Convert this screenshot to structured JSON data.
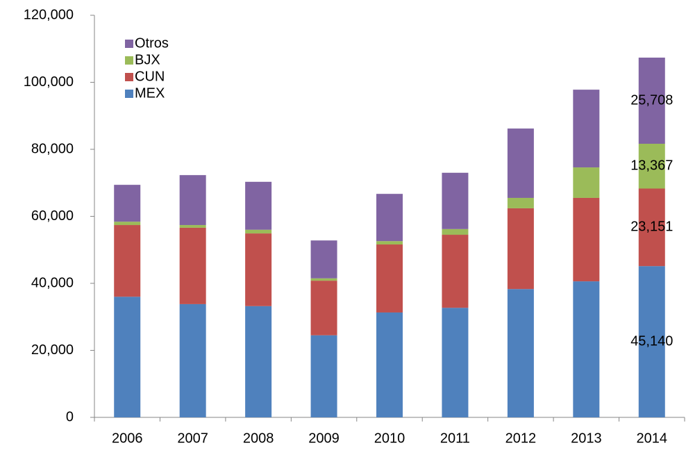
{
  "chart_data": {
    "type": "bar",
    "stacked": true,
    "categories": [
      "2006",
      "2007",
      "2008",
      "2009",
      "2010",
      "2011",
      "2012",
      "2013",
      "2014"
    ],
    "series": [
      {
        "name": "MEX",
        "color": "#4f81bd",
        "values": [
          36000,
          33800,
          33200,
          24500,
          31300,
          32700,
          38300,
          40600,
          45140
        ],
        "value_labels": [
          null,
          null,
          null,
          null,
          null,
          null,
          null,
          null,
          "45,140"
        ]
      },
      {
        "name": "CUN",
        "color": "#c0504d",
        "values": [
          21400,
          22800,
          21700,
          16300,
          20300,
          21800,
          24100,
          24900,
          23151
        ],
        "value_labels": [
          null,
          null,
          null,
          null,
          null,
          null,
          null,
          null,
          "23,151"
        ]
      },
      {
        "name": "BJX",
        "color": "#9bbb59",
        "values": [
          1000,
          800,
          1100,
          700,
          1000,
          1700,
          3100,
          9100,
          13367
        ],
        "value_labels": [
          null,
          null,
          null,
          null,
          null,
          null,
          null,
          null,
          "13,367"
        ]
      },
      {
        "name": "Otros",
        "color": "#8064a2",
        "values": [
          11000,
          14900,
          14300,
          11300,
          14100,
          16800,
          20700,
          23200,
          25708
        ],
        "value_labels": [
          null,
          null,
          null,
          null,
          null,
          null,
          null,
          null,
          "25,708"
        ]
      }
    ],
    "ylim": [
      0,
      120000
    ],
    "yticks": [
      0,
      {
        "value": 20000,
        "label": "20,000"
      },
      {
        "value": 40000,
        "label": "40,000"
      },
      {
        "value": 60000,
        "label": "60,000"
      },
      {
        "value": 80000,
        "label": "80,000"
      },
      {
        "value": 100000,
        "label": "100,000"
      },
      {
        "value": 120000,
        "label": "120,000"
      }
    ],
    "legend": "upper left",
    "grid": false
  }
}
